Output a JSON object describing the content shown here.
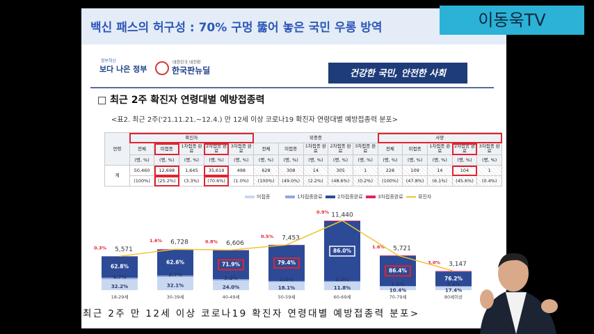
{
  "channel": "이동욱TV",
  "header": {
    "title": "백신 패스의 허구성 : 70% 구멍 뚫어 놓은 국민 우롱 방역"
  },
  "slide": {
    "logos": [
      "정부혁신",
      "보다 나은 정부",
      "대한민국 대전환",
      "한국판뉴딜"
    ],
    "slogan": "건강한 국민, 안전한 사회",
    "section_title": "□ 최근 2주 확진자 연령대별 예방접종력",
    "caption": "<표2. 최근 2주('21.11.21.~12.4.) 만 12세 이상 코로나19 확진자 연령대별 예방접종력 분포>",
    "table": {
      "age_header": "연령",
      "unit": "(명, %)",
      "groups": [
        {
          "name": "확진자",
          "columns": [
            "전체",
            "미접종",
            "1차접종 완료",
            "2차접종 완료",
            "3차접종 완료"
          ]
        },
        {
          "name": "위중증",
          "columns": [
            "전체",
            "미접종",
            "1차접종 완료",
            "2차접종 완료",
            "3차접종 완료"
          ]
        },
        {
          "name": "사망",
          "columns": [
            "전체",
            "미접종",
            "1차접종 완료",
            "2차접종 완료",
            "3차접종 완료"
          ]
        }
      ],
      "row_label": "계",
      "counts": [
        "50,460",
        "12,698",
        "1,645",
        "35,619",
        "498",
        "628",
        "308",
        "14",
        "305",
        "1",
        "228",
        "109",
        "14",
        "104",
        "1"
      ],
      "shares": [
        "(100%)",
        "(25.2%)",
        "(3.3%)",
        "(70.6%)",
        "(1.0%)",
        "(100%)",
        "(49.0%)",
        "(2.2%)",
        "(48.6%)",
        "(0.2%)",
        "(100%)",
        "(47.8%)",
        "(6.1%)",
        "(45.6%)",
        "(0.4%)"
      ]
    }
  },
  "chart_data": {
    "type": "bar",
    "stacked": true,
    "categories": [
      "18-29세",
      "30-39세",
      "40-49세",
      "50-59세",
      "60-69세",
      "70-79세",
      "80세이상"
    ],
    "series": [
      {
        "name": "미접종",
        "color": "#c9d8f0",
        "values": [
          32.2,
          32.1,
          24.0,
          18.1,
          11.8,
          10.4,
          17.4
        ],
        "value_labels": [
          "32.2%",
          "32.1%",
          "24.0%",
          "18.1%",
          "11.8%",
          "10.4%",
          "17.4%"
        ]
      },
      {
        "name": "1차접종완료",
        "color": "#8fa9dc",
        "values": [
          4.7,
          3.7,
          3.2,
          2.0,
          1.3,
          1.6,
          3.4
        ],
        "value_labels": [
          "4.7%",
          "3.7%",
          "3.2%",
          "2.0%",
          "1.3%",
          "1.6%",
          "3.4%"
        ]
      },
      {
        "name": "2차접종완료",
        "color": "#2c4a96",
        "values": [
          62.8,
          62.6,
          71.9,
          79.4,
          86.0,
          86.4,
          76.2
        ],
        "value_labels": [
          "62.8%",
          "62.6%",
          "71.9%",
          "79.4%",
          "86.0%",
          "86.4%",
          "76.2%"
        ]
      },
      {
        "name": "3차접종완료",
        "color": "#e0245e",
        "values": [
          0.3,
          1.6,
          0.8,
          0.5,
          0.9,
          1.6,
          3.0
        ],
        "value_labels": [
          "0.3%",
          "1.6%",
          "0.8%",
          "0.5%",
          "0.9%",
          "1.6%",
          "3.0%"
        ]
      },
      {
        "name": "확진자",
        "type": "line",
        "color": "#f2c230",
        "values": [
          5571,
          6728,
          6606,
          7453,
          11440,
          5721,
          3147
        ],
        "value_labels": [
          "5,571",
          "6,728",
          "6,606",
          "7,453",
          "11,440",
          "5,721",
          "3,147"
        ]
      }
    ]
  },
  "footer_caption": "최근 2주 만 12세 이상 코로나19 확진자 연령대별 예방접종력 분포>"
}
